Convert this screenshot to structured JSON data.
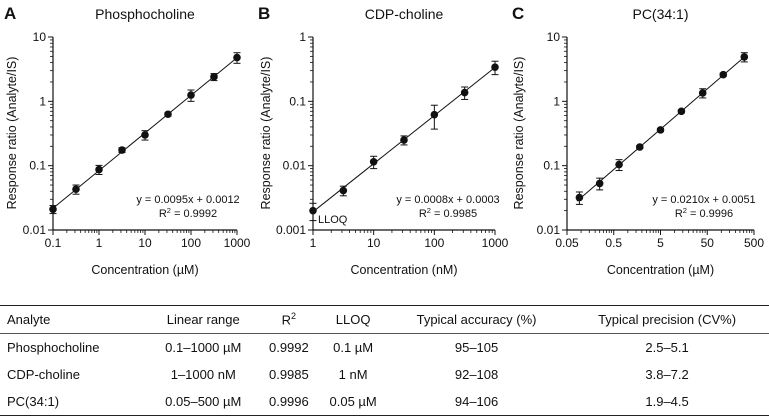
{
  "chart_data": [
    {
      "type": "scatter",
      "panel": "A",
      "title": "Phosphocholine",
      "xlabel": "Concentration (µM)",
      "ylabel": "Response ratio (Analyte/IS)",
      "xscale": "log",
      "yscale": "log",
      "xlim": [
        0.1,
        1000
      ],
      "ylim": [
        0.01,
        10
      ],
      "xticks": [
        "0.1",
        "1",
        "10",
        "100",
        "1000"
      ],
      "yticks": [
        "0.01",
        "0.1",
        "1",
        "10"
      ],
      "x": [
        0.1,
        0.316,
        1,
        3.16,
        10,
        31.6,
        100,
        316,
        1000
      ],
      "y": [
        0.021,
        0.043,
        0.087,
        0.175,
        0.3,
        0.63,
        1.25,
        2.4,
        4.8
      ],
      "yerr": [
        0.003,
        0.007,
        0.014,
        0.015,
        0.05,
        0.04,
        0.25,
        0.3,
        0.9
      ],
      "fit_line": true,
      "equation": "y = 0.0095x + 0.0012",
      "r2_label": "R",
      "r2_value": "= 0.9992",
      "grid": false
    },
    {
      "type": "scatter",
      "panel": "B",
      "title": "CDP-choline",
      "xlabel": "Concentration (nM)",
      "ylabel": "Response ratio (Analyte/IS)",
      "xscale": "log",
      "yscale": "log",
      "xlim": [
        1,
        1000
      ],
      "ylim": [
        0.001,
        1
      ],
      "xticks": [
        "1",
        "10",
        "100",
        "1000"
      ],
      "yticks": [
        "0.001",
        "0.01",
        "0.1",
        "1"
      ],
      "x": [
        1,
        3.16,
        10,
        31.6,
        100,
        316,
        1000
      ],
      "y": [
        0.002,
        0.0041,
        0.0115,
        0.025,
        0.062,
        0.137,
        0.34
      ],
      "yerr": [
        0.0006,
        0.0007,
        0.0025,
        0.004,
        0.025,
        0.03,
        0.08
      ],
      "fit_line": true,
      "annotation": "LLOQ",
      "equation": "y = 0.0008x + 0.0003",
      "r2_label": "R",
      "r2_value": "= 0.9985",
      "grid": false
    },
    {
      "type": "scatter",
      "panel": "C",
      "title": "PC(34:1)",
      "xlabel": "Concentration (µM)",
      "ylabel": "Response ratio (Analyte/IS)",
      "xscale": "log",
      "yscale": "log",
      "xlim": [
        0.05,
        500
      ],
      "ylim": [
        0.01,
        10
      ],
      "xticks": [
        "0.05",
        "0.5",
        "5",
        "50",
        "500"
      ],
      "yticks": [
        "0.01",
        "0.1",
        "1",
        "10"
      ],
      "x": [
        0.092,
        0.25,
        0.65,
        1.8,
        5,
        14,
        40,
        110,
        310
      ],
      "y": [
        0.032,
        0.053,
        0.104,
        0.195,
        0.36,
        0.7,
        1.35,
        2.6,
        4.9
      ],
      "yerr": [
        0.007,
        0.011,
        0.02,
        0.01,
        0.02,
        0.04,
        0.22,
        0.15,
        0.8
      ],
      "fit_line": true,
      "equation": "y = 0.0210x + 0.0051",
      "r2_label": "R",
      "r2_value": "= 0.9996",
      "grid": false
    }
  ],
  "table": {
    "headers": [
      "Analyte",
      "Linear range",
      "R",
      "LLOQ",
      "Typical accuracy (%)",
      "Typical precision (CV%)"
    ],
    "r2_sup": "2",
    "rows": [
      [
        "Phosphocholine",
        "0.1–1000 µM",
        "0.9992",
        "0.1 µM",
        "95–105",
        "2.5–5.1"
      ],
      [
        "CDP-choline",
        "1–1000 nM",
        "0.9985",
        "1 nM",
        "92–108",
        "3.8–7.2"
      ],
      [
        "PC(34:1)",
        "0.05–500 µM",
        "0.9996",
        "0.05 µM",
        "94–106",
        "1.9–4.5"
      ]
    ]
  }
}
